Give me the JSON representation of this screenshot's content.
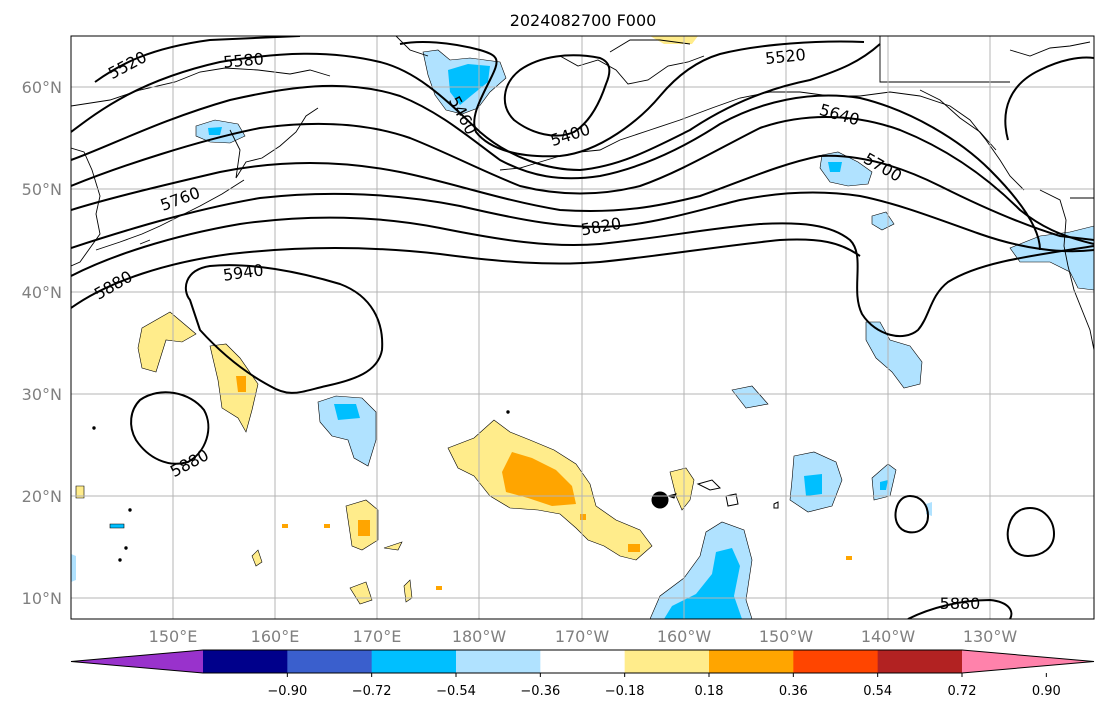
{
  "title": "2024082700 F000",
  "map": {
    "lon_labels": [
      "150°E",
      "160°E",
      "170°E",
      "180°W",
      "170°W",
      "160°W",
      "150°W",
      "140°W",
      "130°W"
    ],
    "lat_labels": [
      "60°N",
      "50°N",
      "40°N",
      "30°N",
      "20°N",
      "10°N"
    ],
    "grid": true,
    "contour_labels": [
      "5520",
      "5580",
      "5460",
      "5400",
      "5520",
      "5640",
      "5700",
      "5760",
      "5820",
      "5880",
      "5940",
      "5880",
      "5880"
    ]
  },
  "colorbar": {
    "ticks": [
      "−0.90",
      "−0.72",
      "−0.54",
      "−0.36",
      "−0.18",
      "0.18",
      "0.36",
      "0.54",
      "0.72",
      "0.90"
    ],
    "colors": [
      "#9932cc",
      "#00008b",
      "#3a5fcd",
      "#00bfff",
      "#b0e2ff",
      "#ffffff",
      "#ffec8b",
      "#ffa500",
      "#ff4500",
      "#b22222",
      "#ff82ab"
    ]
  },
  "colors": {
    "light_blue": "#b0e2ff",
    "blue": "#00bfff",
    "light_yellow": "#ffec8b",
    "orange": "#ffa500",
    "contour": "#000000",
    "grid": "#b4b4b4"
  }
}
